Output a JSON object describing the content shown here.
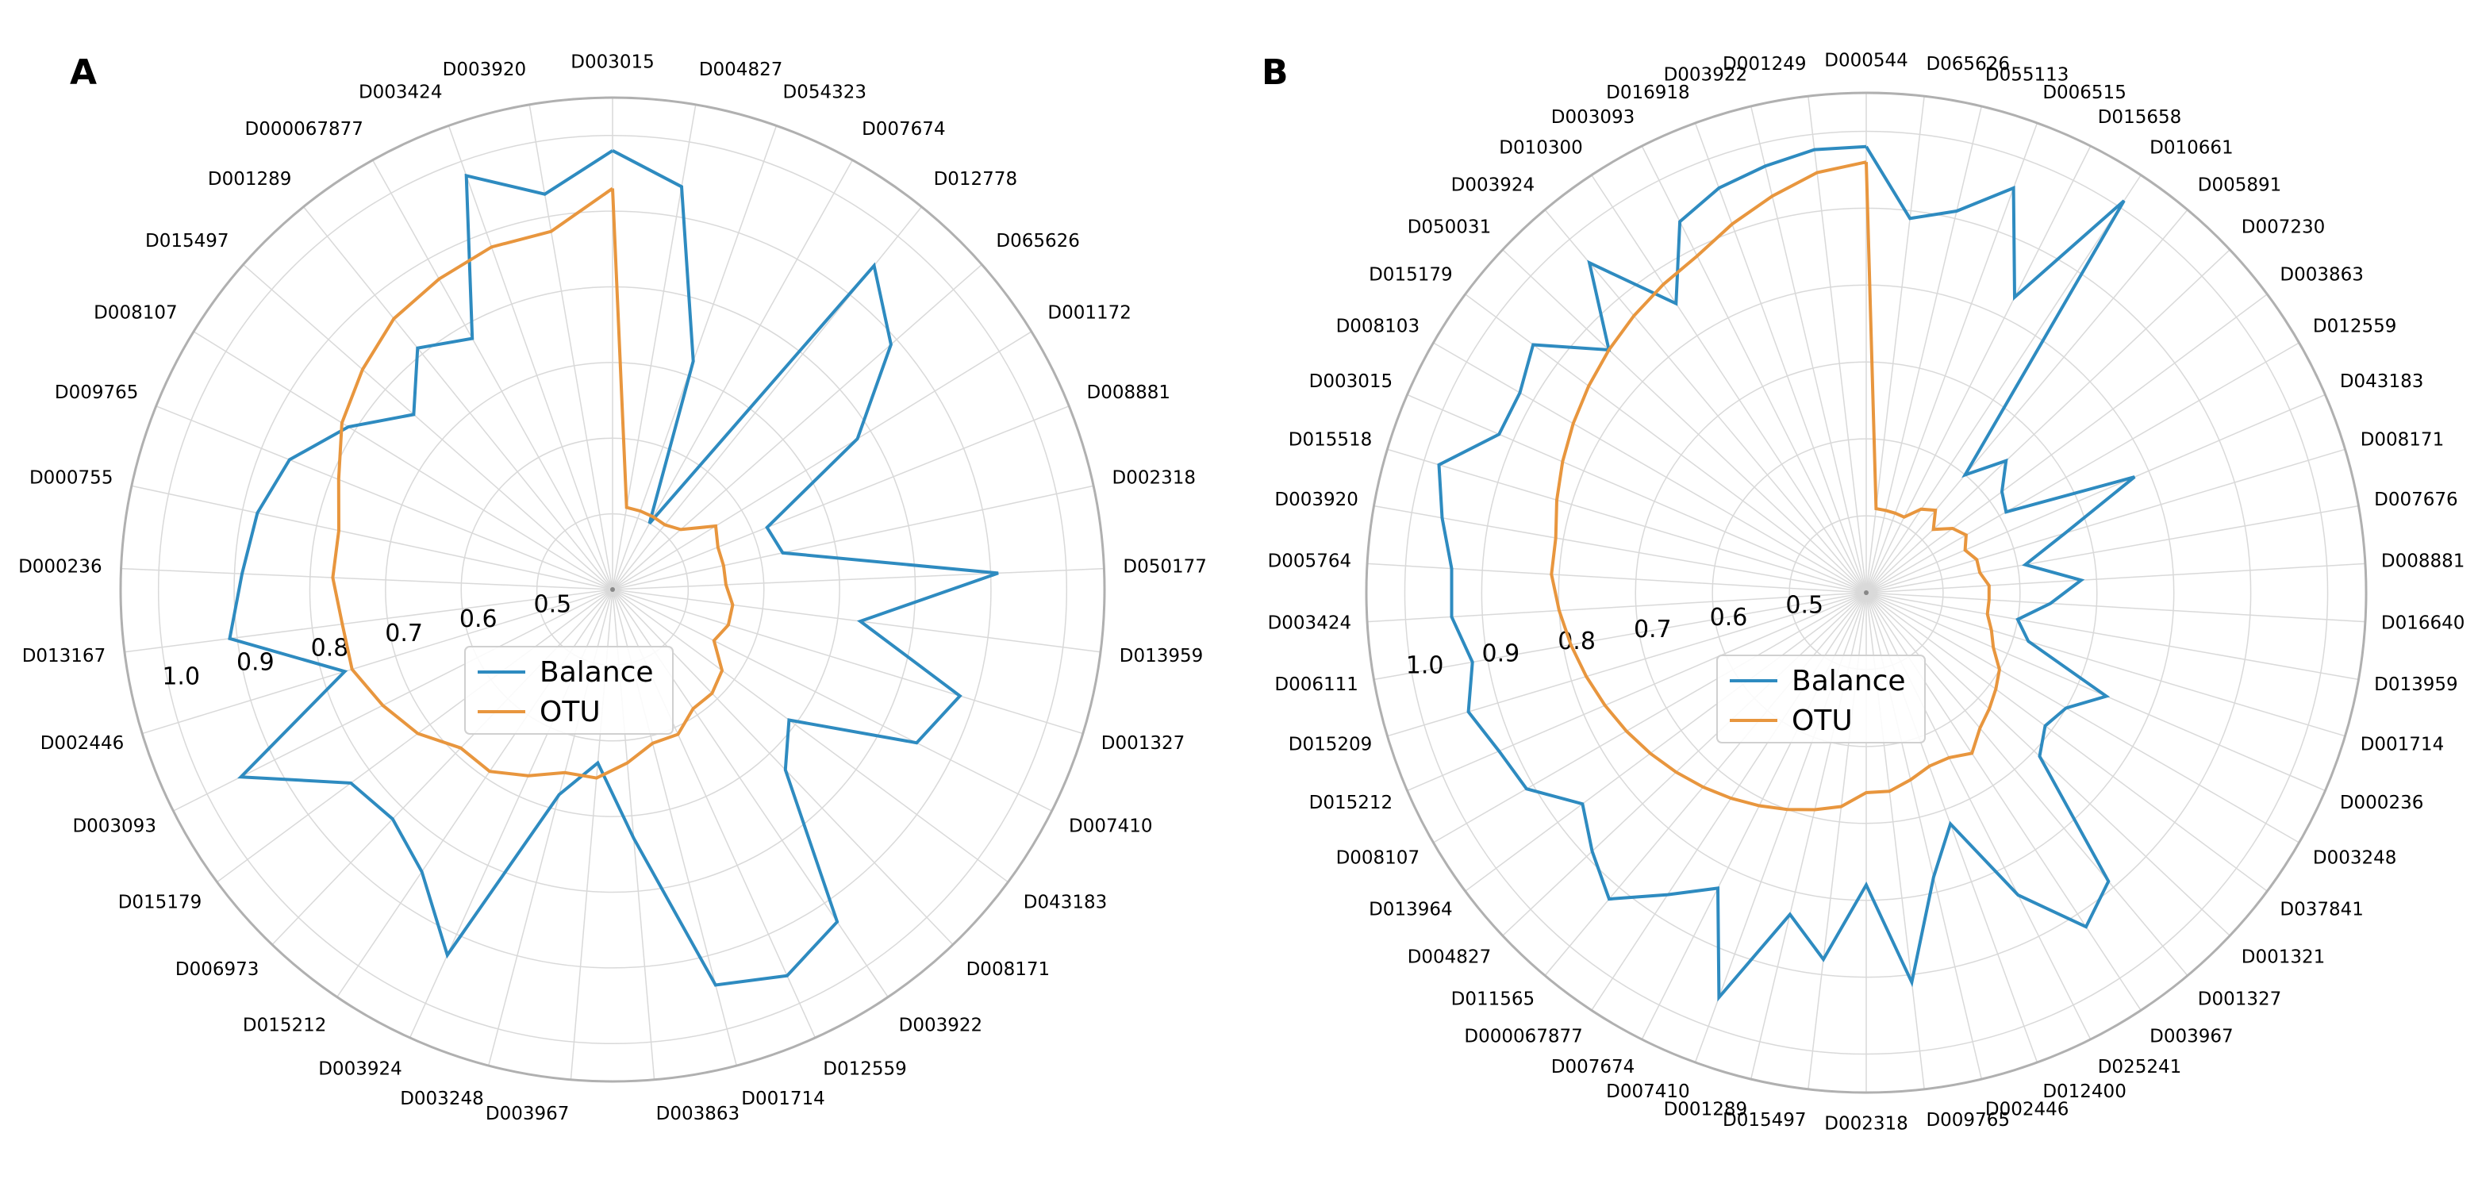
{
  "chart_data": [
    {
      "type": "radar",
      "panel_label": "A",
      "rlim": [
        0.4,
        1.05
      ],
      "r_ticks": [
        "0.5",
        "0.6",
        "0.7",
        "0.8",
        "0.9",
        "1.0"
      ],
      "grid": true,
      "legend_position": "center",
      "categories": [
        "D003015",
        "D004827",
        "D054323",
        "D007674",
        "D012778",
        "D065626",
        "D001172",
        "D008881",
        "D002318",
        "D050177",
        "D013959",
        "D001327",
        "D007410",
        "D043183",
        "D008171",
        "D003922",
        "D012559",
        "D001714",
        "D003863",
        "D003967",
        "D003248",
        "D003924",
        "D015212",
        "D006973",
        "D015179",
        "D003093",
        "D002446",
        "D013167",
        "D000236",
        "D000755",
        "D009765",
        "D008107",
        "D015497",
        "D001289",
        "D000067877",
        "D003424",
        "D003920"
      ],
      "series": [
        {
          "name": "Balance",
          "color": "#2e8bc0",
          "values": [
            0.98,
            0.94,
            0.72,
            0.5,
            0.95,
            0.89,
            0.78,
            0.62,
            0.63,
            0.91,
            0.73,
            0.88,
            0.85,
            0.69,
            0.73,
            0.93,
            0.96,
            0.94,
            0.73,
            0.63,
            0.68,
            0.93,
            0.85,
            0.82,
            0.83,
            0.95,
            0.77,
            0.91,
            0.89,
            0.88,
            0.86,
            0.81,
            0.75,
            0.81,
            0.78,
            0.98,
            0.93
          ]
        },
        {
          "name": "OTU",
          "color": "#e8963e",
          "values": [
            0.93,
            0.51,
            0.51,
            0.51,
            0.51,
            0.52,
            0.56,
            0.55,
            0.55,
            0.55,
            0.56,
            0.56,
            0.55,
            0.58,
            0.59,
            0.59,
            0.61,
            0.61,
            0.63,
            0.65,
            0.65,
            0.67,
            0.69,
            0.69,
            0.72,
            0.74,
            0.76,
            0.76,
            0.77,
            0.77,
            0.79,
            0.82,
            0.84,
            0.86,
            0.87,
            0.88,
            0.88
          ]
        }
      ]
    },
    {
      "type": "radar",
      "panel_label": "B",
      "rlim": [
        0.4,
        1.05
      ],
      "r_ticks": [
        "0.5",
        "0.6",
        "0.7",
        "0.8",
        "0.9",
        "1.0"
      ],
      "grid": true,
      "legend_position": "center",
      "categories": [
        "D000544",
        "D065626",
        "D055113",
        "D006515",
        "D015658",
        "D010661",
        "D005891",
        "D007230",
        "D003863",
        "D012559",
        "D043183",
        "D008171",
        "D007676",
        "D008881",
        "D016640",
        "D013959",
        "D001714",
        "D000236",
        "D003248",
        "D037841",
        "D001321",
        "D001327",
        "D003967",
        "D025241",
        "D012400",
        "D002446",
        "D009765",
        "D002318",
        "D015497",
        "D001289",
        "D007410",
        "D007674",
        "D000067877",
        "D011565",
        "D004827",
        "D013964",
        "D008107",
        "D015212",
        "D015209",
        "D006111",
        "D003424",
        "D005764",
        "D003920",
        "D015518",
        "D003015",
        "D008103",
        "D015179",
        "D050031",
        "D003924",
        "D010300",
        "D003093",
        "D016918",
        "D003922",
        "D001249"
      ],
      "series": [
        {
          "name": "Balance",
          "color": "#2e8bc0",
          "values": [
            0.98,
            0.89,
            0.91,
            0.96,
            0.83,
            1.01,
            0.6,
            0.65,
            0.62,
            0.61,
            0.78,
            0.67,
            0.61,
            0.68,
            0.64,
            0.6,
            0.62,
            0.74,
            0.7,
            0.69,
            0.71,
            0.89,
            0.92,
            0.84,
            0.72,
            0.78,
            0.91,
            0.78,
            0.88,
            0.83,
            0.96,
            0.83,
            0.87,
            0.92,
            0.89,
            0.86,
            0.91,
            0.92,
            0.94,
            0.92,
            0.94,
            0.94,
            0.96,
            0.98,
            0.92,
            0.92,
            0.94,
            0.86,
            0.96,
            0.85,
            0.94,
            0.96,
            0.97,
            0.98
          ]
        },
        {
          "name": "OTU",
          "color": "#e8963e",
          "values": [
            0.96,
            0.51,
            0.51,
            0.51,
            0.51,
            0.53,
            0.54,
            0.52,
            0.54,
            0.55,
            0.54,
            0.55,
            0.55,
            0.56,
            0.56,
            0.56,
            0.57,
            0.58,
            0.6,
            0.61,
            0.62,
            0.63,
            0.65,
            0.64,
            0.64,
            0.65,
            0.66,
            0.66,
            0.68,
            0.69,
            0.7,
            0.71,
            0.72,
            0.73,
            0.74,
            0.75,
            0.76,
            0.77,
            0.78,
            0.79,
            0.8,
            0.81,
            0.81,
            0.82,
            0.83,
            0.84,
            0.85,
            0.86,
            0.87,
            0.88,
            0.89,
            0.91,
            0.93,
            0.95
          ]
        }
      ]
    }
  ]
}
